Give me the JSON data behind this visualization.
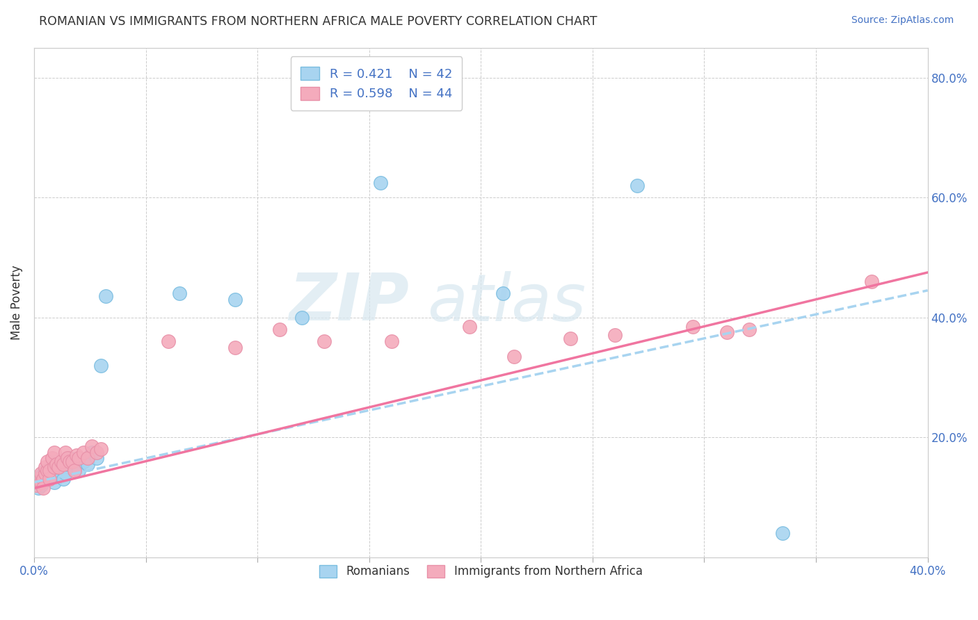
{
  "title": "ROMANIAN VS IMMIGRANTS FROM NORTHERN AFRICA MALE POVERTY CORRELATION CHART",
  "source": "Source: ZipAtlas.com",
  "xlabel": "",
  "ylabel": "Male Poverty",
  "x_min": 0.0,
  "x_max": 0.4,
  "y_min": 0.0,
  "y_max": 0.85,
  "x_ticks": [
    0.0,
    0.05,
    0.1,
    0.15,
    0.2,
    0.25,
    0.3,
    0.35,
    0.4
  ],
  "y_ticks_right": [
    0.0,
    0.2,
    0.4,
    0.6,
    0.8
  ],
  "y_tick_labels_right": [
    "",
    "20.0%",
    "40.0%",
    "60.0%",
    "80.0%"
  ],
  "legend_r1": "R = 0.421",
  "legend_n1": "N = 42",
  "legend_r2": "R = 0.598",
  "legend_n2": "N = 44",
  "color_romanian": "#A8D4F0",
  "color_immigrant": "#F4ABBC",
  "color_line_romanian": "#A8D4F0",
  "color_line_immigrant": "#F075A0",
  "watermark_zip": "ZIP",
  "watermark_atlas": "atlas",
  "rom_line_x0": 0.0,
  "rom_line_y0": 0.125,
  "rom_line_x1": 0.4,
  "rom_line_y1": 0.445,
  "imm_line_x0": 0.0,
  "imm_line_y0": 0.115,
  "imm_line_x1": 0.4,
  "imm_line_y1": 0.475,
  "romanians_x": [
    0.001,
    0.002,
    0.002,
    0.003,
    0.003,
    0.004,
    0.004,
    0.005,
    0.005,
    0.006,
    0.006,
    0.007,
    0.008,
    0.008,
    0.009,
    0.009,
    0.01,
    0.01,
    0.011,
    0.012,
    0.012,
    0.013,
    0.014,
    0.015,
    0.016,
    0.017,
    0.018,
    0.019,
    0.02,
    0.022,
    0.024,
    0.026,
    0.028,
    0.03,
    0.032,
    0.065,
    0.09,
    0.12,
    0.155,
    0.21,
    0.27,
    0.335
  ],
  "romanians_y": [
    0.125,
    0.13,
    0.115,
    0.135,
    0.12,
    0.14,
    0.128,
    0.135,
    0.145,
    0.14,
    0.13,
    0.145,
    0.135,
    0.15,
    0.155,
    0.125,
    0.16,
    0.145,
    0.15,
    0.155,
    0.16,
    0.13,
    0.14,
    0.155,
    0.165,
    0.16,
    0.148,
    0.155,
    0.145,
    0.16,
    0.155,
    0.175,
    0.165,
    0.32,
    0.435,
    0.44,
    0.43,
    0.4,
    0.625,
    0.44,
    0.62,
    0.04
  ],
  "immigrants_x": [
    0.001,
    0.002,
    0.003,
    0.003,
    0.004,
    0.004,
    0.005,
    0.005,
    0.006,
    0.006,
    0.007,
    0.007,
    0.008,
    0.009,
    0.009,
    0.01,
    0.011,
    0.012,
    0.013,
    0.014,
    0.015,
    0.016,
    0.017,
    0.018,
    0.019,
    0.02,
    0.022,
    0.024,
    0.026,
    0.028,
    0.03,
    0.06,
    0.09,
    0.11,
    0.13,
    0.16,
    0.195,
    0.215,
    0.24,
    0.26,
    0.295,
    0.31,
    0.32,
    0.375
  ],
  "immigrants_y": [
    0.12,
    0.13,
    0.125,
    0.14,
    0.13,
    0.115,
    0.14,
    0.15,
    0.145,
    0.16,
    0.13,
    0.145,
    0.165,
    0.15,
    0.175,
    0.155,
    0.15,
    0.16,
    0.155,
    0.175,
    0.165,
    0.16,
    0.16,
    0.145,
    0.17,
    0.165,
    0.175,
    0.165,
    0.185,
    0.175,
    0.18,
    0.36,
    0.35,
    0.38,
    0.36,
    0.36,
    0.385,
    0.335,
    0.365,
    0.37,
    0.385,
    0.375,
    0.38,
    0.46
  ]
}
